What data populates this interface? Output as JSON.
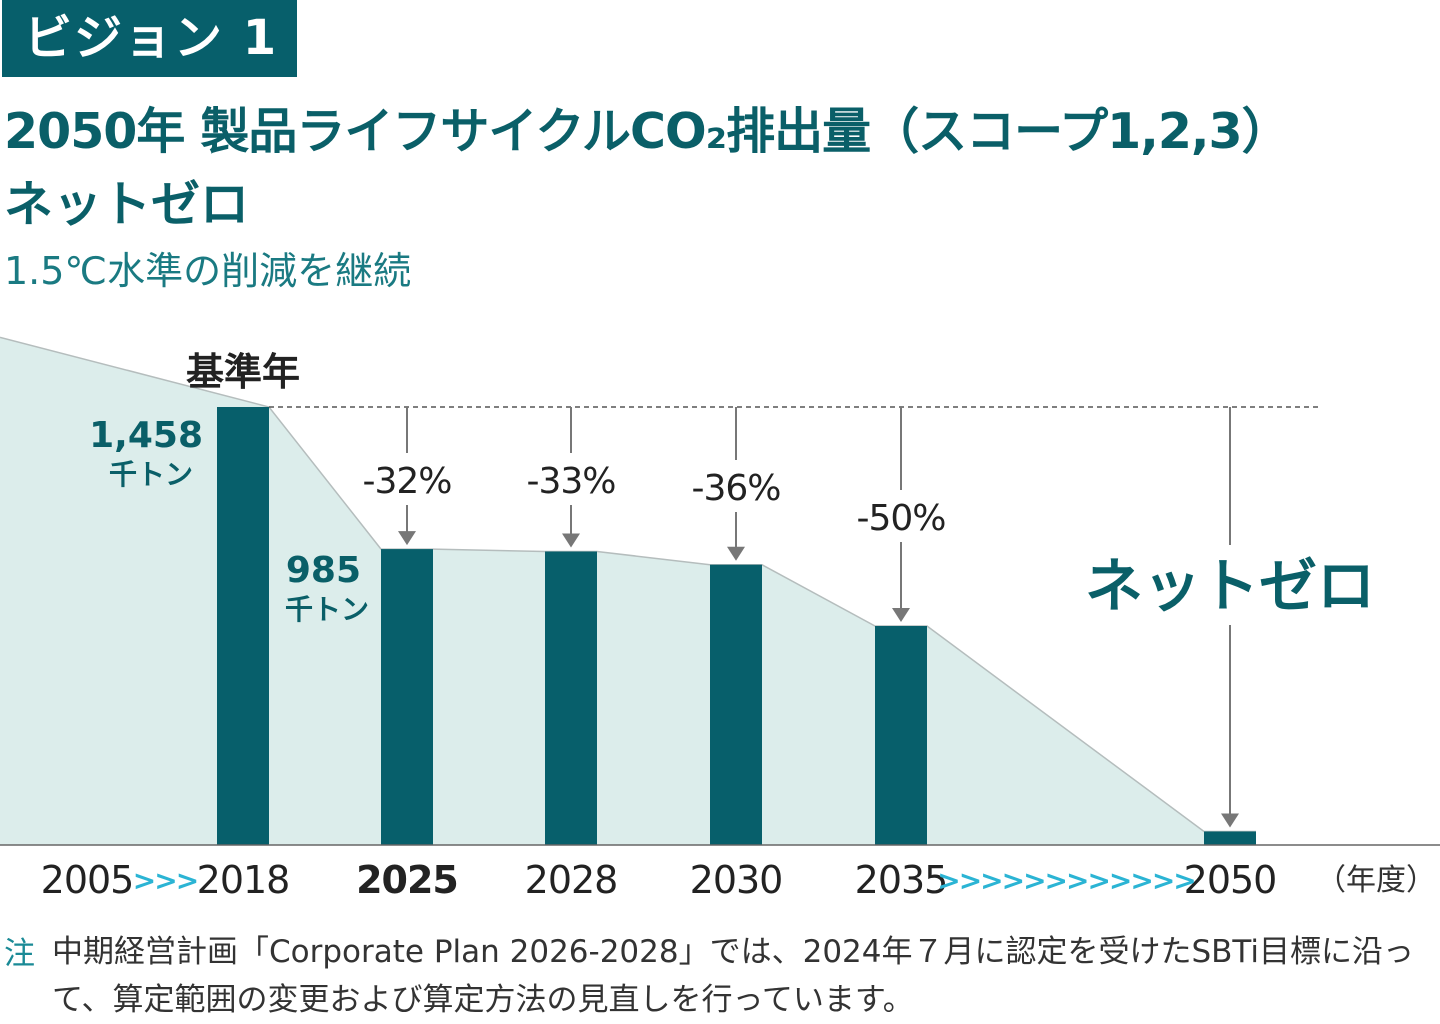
{
  "header": {
    "badge": "ビジョン 1",
    "title_line1": "2050年 製品ライフサイクルCO₂排出量（スコープ1,2,3）",
    "title_line2": "ネットゼロ",
    "subtitle": "1.5℃水準の削減を継続"
  },
  "colors": {
    "bar": "#075f6b",
    "area": "#dcedeb",
    "accent_arrows": "#2bb4d4",
    "text_teal": "#0a5f68"
  },
  "chart_data": {
    "type": "bar",
    "categories": [
      "2018",
      "2025",
      "2028",
      "2030",
      "2035",
      "2050"
    ],
    "x_axis_labels": [
      "2005",
      "2018",
      "2025",
      "2028",
      "2030",
      "2035",
      "2050"
    ],
    "x_separators": [
      ">>>",
      ">>>>>>>>>>>>"
    ],
    "values": [
      1458,
      985,
      977,
      933,
      729,
      0
    ],
    "unit_label": "千トン",
    "axis_unit": "（年度）",
    "baseline_label": "基準年",
    "baseline_value_text": "1,458",
    "value_2025_text": "985",
    "reductions": [
      {
        "year": "2025",
        "label": "-32%"
      },
      {
        "year": "2028",
        "label": "-33%"
      },
      {
        "year": "2030",
        "label": "-36%"
      },
      {
        "year": "2035",
        "label": "-50%"
      },
      {
        "year": "2050",
        "label": "ネットゼロ"
      }
    ],
    "area_trend": {
      "2005": 1690,
      "2018": 1458
    },
    "bold_category": "2025"
  },
  "note": {
    "mark": "注",
    "text": "中期経営計画「Corporate Plan 2026-2028」では、2024年７月に認定を受けたSBTi目標に沿って、算定範囲の変更および算定方法の見直しを行っています。"
  }
}
